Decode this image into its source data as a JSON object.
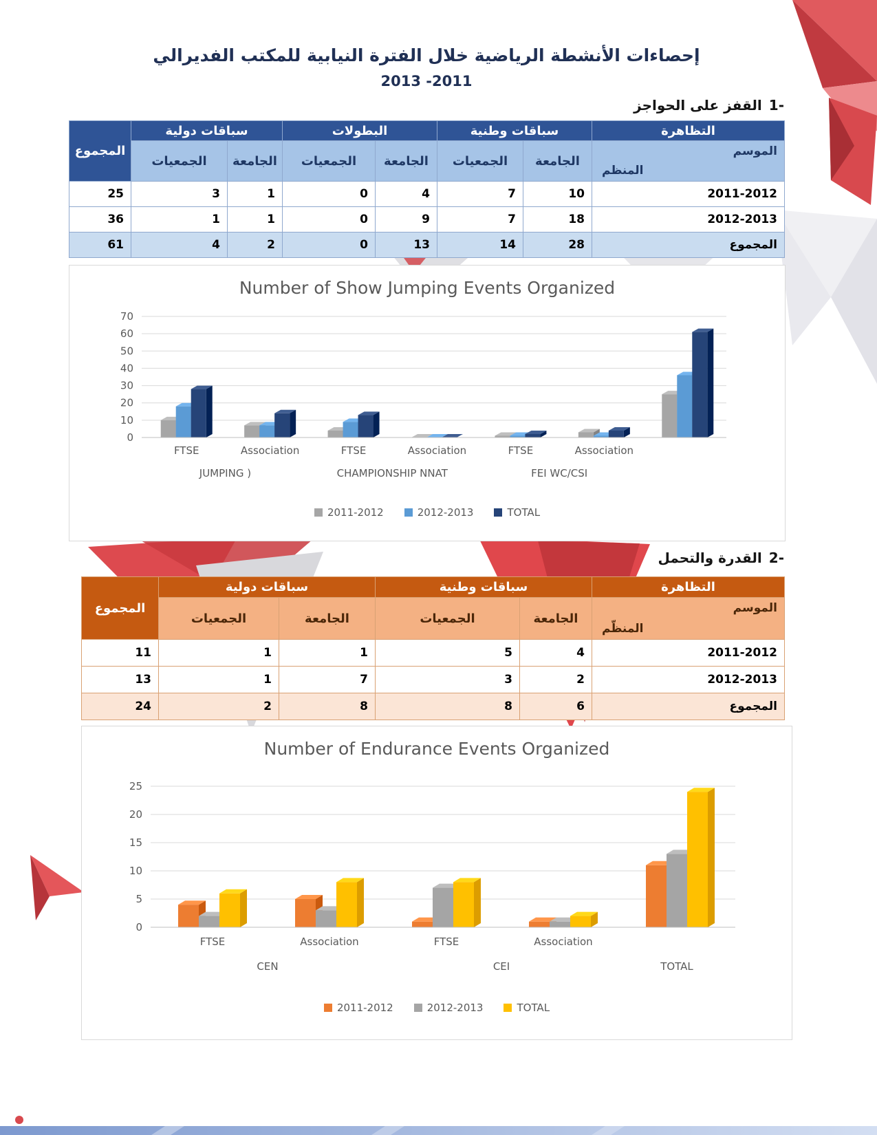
{
  "page": {
    "title": "إحصاءات الأنشطة الرياضية خلال الفترة النيابية للمكتب الفديرالي",
    "subtitle": "2013 -2011",
    "sections": [
      {
        "number": "1-",
        "label": "القفز على الحواجز"
      },
      {
        "number": "2-",
        "label": "القدرة والتحمل"
      }
    ]
  },
  "table1": {
    "header": {
      "event": "التظاهرة",
      "national_races": "سباقات وطنية",
      "championships": "البطولات",
      "international_races": "سباقات دولية",
      "grand_total": "المجموع",
      "university": "الجامعة",
      "associations": "الجمعيات",
      "season": "الموسم",
      "organizer": "المنظم"
    },
    "rows": [
      {
        "label": "2011-2012",
        "values": [
          "10",
          "7",
          "4",
          "0",
          "1",
          "3",
          "25"
        ],
        "total": false
      },
      {
        "label": "2012-2013",
        "values": [
          "18",
          "7",
          "9",
          "0",
          "1",
          "1",
          "36"
        ],
        "total": false
      },
      {
        "label": "المجموع",
        "values": [
          "28",
          "14",
          "13",
          "0",
          "2",
          "4",
          "61"
        ],
        "total": true
      }
    ]
  },
  "table2": {
    "header": {
      "event": "التظاهرة",
      "national_races": "سباقات وطنية",
      "international_races": "سباقات دولية",
      "grand_total": "المجموع",
      "university": "الجامعة",
      "associations": "الجمعيات",
      "season": "الموسم",
      "organizer": "المنظّم"
    },
    "rows": [
      {
        "label": "2011-2012",
        "values": [
          "4",
          "5",
          "1",
          "1",
          "11"
        ],
        "total": false
      },
      {
        "label": "2012-2013",
        "values": [
          "2",
          "3",
          "7",
          "1",
          "13"
        ],
        "total": false
      },
      {
        "label": "المجموع",
        "values": [
          "6",
          "8",
          "8",
          "2",
          "24"
        ],
        "total": true
      }
    ]
  },
  "colors": {
    "table1_header": "#2F5496",
    "table1_subheader": "#A6C4E7",
    "table1_total_row": "#C9DCF0",
    "table2_header": "#C55A11",
    "table2_subheader": "#F4B183",
    "table2_total_row": "#FBE5D6",
    "accent_red": "#DD4A4F"
  },
  "chart_data": [
    {
      "type": "bar",
      "title": "Number of Show Jumping Events Organized",
      "groups": [
        "FTSE",
        "Association",
        "FTSE",
        "Association",
        "FTSE",
        "Association",
        ""
      ],
      "group_categories": [
        {
          "label": "JUMPING  )",
          "span": [
            0,
            1
          ]
        },
        {
          "label": "CHAMPIONSHIP NNAT",
          "span": [
            2,
            3
          ]
        },
        {
          "label": "FEI WC/CSI",
          "span": [
            4,
            5
          ]
        },
        {
          "label": "",
          "span": [
            6,
            6
          ]
        }
      ],
      "series": [
        {
          "name": "2011-2012",
          "color": "#A6A6A6",
          "values": [
            10,
            7,
            4,
            0,
            1,
            3,
            25
          ]
        },
        {
          "name": "2012-2013",
          "color": "#5B9BD5",
          "values": [
            18,
            7,
            9,
            0,
            1,
            1,
            36
          ]
        },
        {
          "name": "TOTAL",
          "color": "#264478",
          "values": [
            28,
            14,
            13,
            0,
            2,
            4,
            61
          ]
        }
      ],
      "ylim": [
        0,
        70
      ],
      "ytick": 10,
      "grid": true,
      "legend_position": "bottom"
    },
    {
      "type": "bar",
      "title": "Number of Endurance Events Organized",
      "groups": [
        "FTSE",
        "Association",
        "FTSE",
        "Association",
        ""
      ],
      "group_categories": [
        {
          "label": "CEN",
          "span": [
            0,
            1
          ]
        },
        {
          "label": "CEI",
          "span": [
            2,
            3
          ]
        },
        {
          "label": "TOTAL",
          "span": [
            4,
            4
          ]
        }
      ],
      "series": [
        {
          "name": "2011-2012",
          "color": "#ED7D31",
          "values": [
            4,
            5,
            1,
            1,
            11
          ]
        },
        {
          "name": "2012-2013",
          "color": "#A5A5A5",
          "values": [
            2,
            3,
            7,
            1,
            13
          ]
        },
        {
          "name": "TOTAL",
          "color": "#FFC000",
          "values": [
            6,
            8,
            8,
            2,
            24
          ]
        }
      ],
      "ylim": [
        0,
        25
      ],
      "ytick": 5,
      "grid": true,
      "legend_position": "bottom"
    }
  ]
}
